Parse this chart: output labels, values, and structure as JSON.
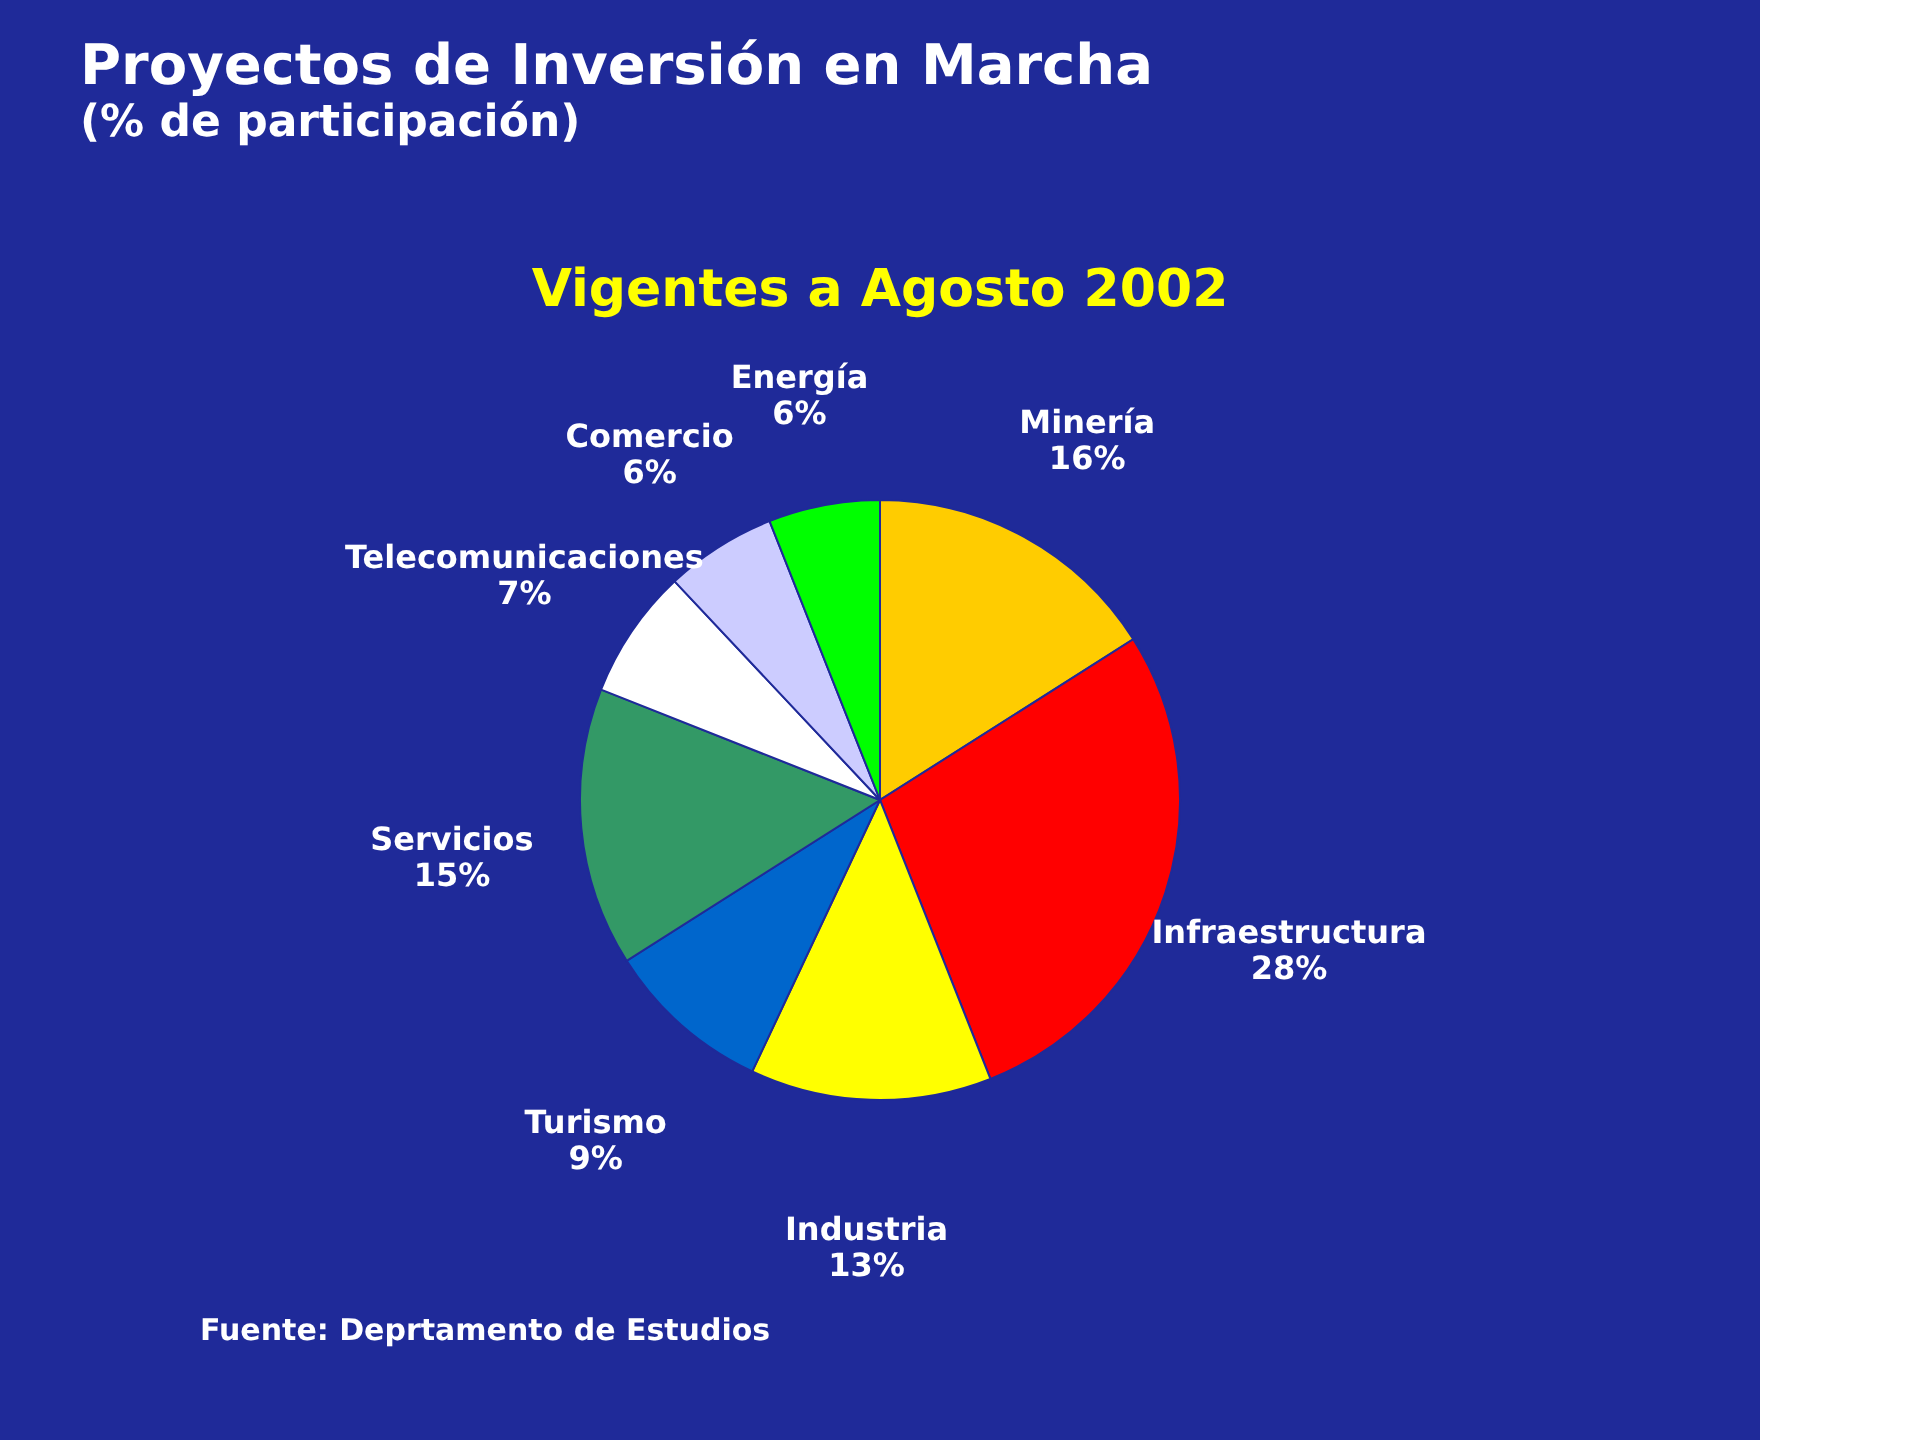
{
  "chart_data": {
    "type": "pie",
    "title": "Proyectos de Inversión en Marcha",
    "subtitle": "(% de participación)",
    "categories": [
      "Minería",
      "Infraestructura",
      "Industria",
      "Turismo",
      "Servicios",
      "Telecomunicaciones",
      "Comercio",
      "Energía"
    ],
    "values": [
      16,
      28,
      13,
      9,
      15,
      7,
      6,
      6
    ],
    "value_labels": [
      "16%",
      "28%",
      "13%",
      "9%",
      "15%",
      "7%",
      "6%",
      "6%"
    ],
    "colors": [
      "#ffcc00",
      "#ff0000",
      "#ffff00",
      "#0066cc",
      "#339966",
      "#ffffff",
      "#ccccff",
      "#00ff00"
    ],
    "annotations": [
      "Vigentes a Agosto 2002",
      "Fuente: Deprtamento de Estudios"
    ],
    "legend": false
  }
}
